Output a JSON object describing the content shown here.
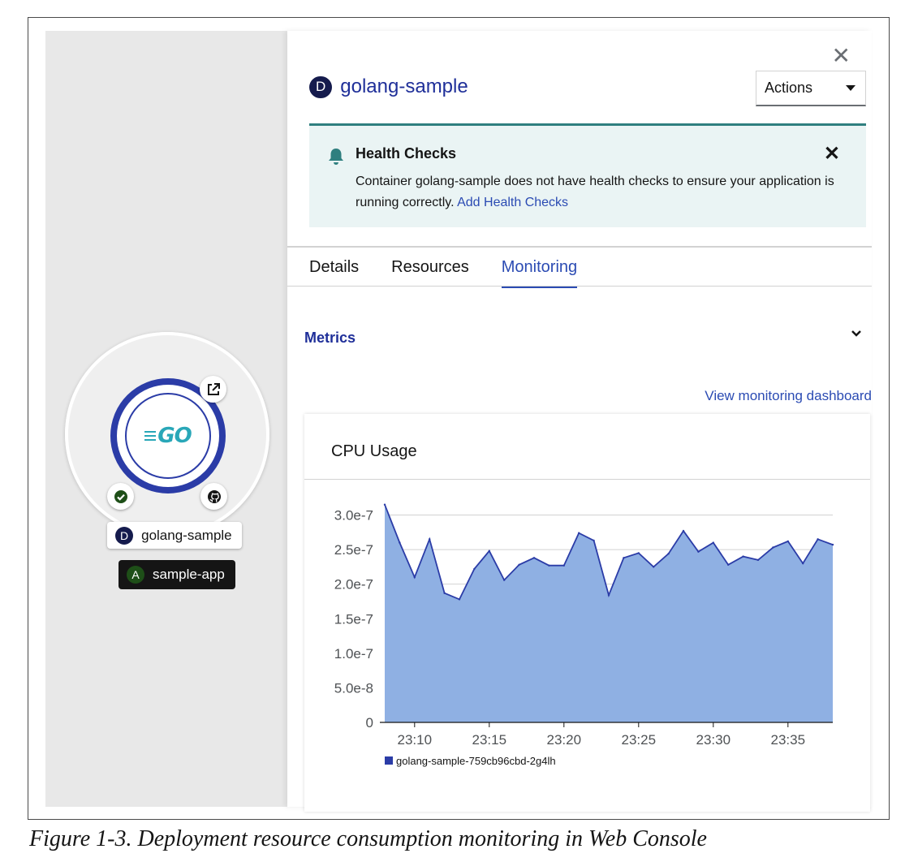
{
  "topology": {
    "node_logo_text": "GO",
    "deployment_badge": "D",
    "deployment_name": "golang-sample",
    "app_badge": "A",
    "app_name": "sample-app"
  },
  "panel": {
    "badge": "D",
    "title": "golang-sample",
    "actions_label": "Actions"
  },
  "alert": {
    "title": "Health Checks",
    "body": "Container golang-sample does not have health checks to ensure your application is running correctly.",
    "link": "Add Health Checks"
  },
  "tabs": [
    {
      "label": "Details",
      "active": false
    },
    {
      "label": "Resources",
      "active": false
    },
    {
      "label": "Monitoring",
      "active": true
    }
  ],
  "metrics": {
    "heading": "Metrics",
    "dashboard_link": "View monitoring dashboard"
  },
  "colors": {
    "accent": "#2b4bb3",
    "area_fill": "#8fb0e3",
    "area_line": "#2b3ca7",
    "alert_bg": "#eaf4f4"
  },
  "chart_data": {
    "type": "area",
    "title": "CPU Usage",
    "xlabel": "",
    "ylabel": "",
    "x": [
      "23:08",
      "23:09",
      "23:10",
      "23:11",
      "23:12",
      "23:13",
      "23:14",
      "23:15",
      "23:16",
      "23:17",
      "23:18",
      "23:19",
      "23:20",
      "23:21",
      "23:22",
      "23:23",
      "23:24",
      "23:25",
      "23:26",
      "23:27",
      "23:28",
      "23:29",
      "23:30",
      "23:31",
      "23:32",
      "23:33",
      "23:34",
      "23:35",
      "23:36",
      "23:37",
      "23:38"
    ],
    "x_ticks": [
      "23:10",
      "23:15",
      "23:20",
      "23:25",
      "23:30",
      "23:35"
    ],
    "y_ticks": [
      "0",
      "5.0e-8",
      "1.0e-7",
      "1.5e-7",
      "2.0e-7",
      "2.5e-7",
      "3.0e-7"
    ],
    "ylim": [
      0,
      3.1e-07
    ],
    "grid": true,
    "legend": "bottom-left",
    "series": [
      {
        "name": "golang-sample-759cb96cbd-2g4lh",
        "values": [
          3.15e-07,
          2.6e-07,
          2.1e-07,
          2.65e-07,
          1.87e-07,
          1.78e-07,
          2.22e-07,
          2.48e-07,
          2.06e-07,
          2.28e-07,
          2.38e-07,
          2.27e-07,
          2.27e-07,
          2.74e-07,
          2.63e-07,
          1.84e-07,
          2.38e-07,
          2.45e-07,
          2.25e-07,
          2.44e-07,
          2.77e-07,
          2.47e-07,
          2.6e-07,
          2.28e-07,
          2.4e-07,
          2.35e-07,
          2.53e-07,
          2.62e-07,
          2.3e-07,
          2.65e-07,
          2.57e-07
        ]
      }
    ]
  },
  "caption": "Figure 1-3. Deployment resource consumption monitoring in Web Console"
}
